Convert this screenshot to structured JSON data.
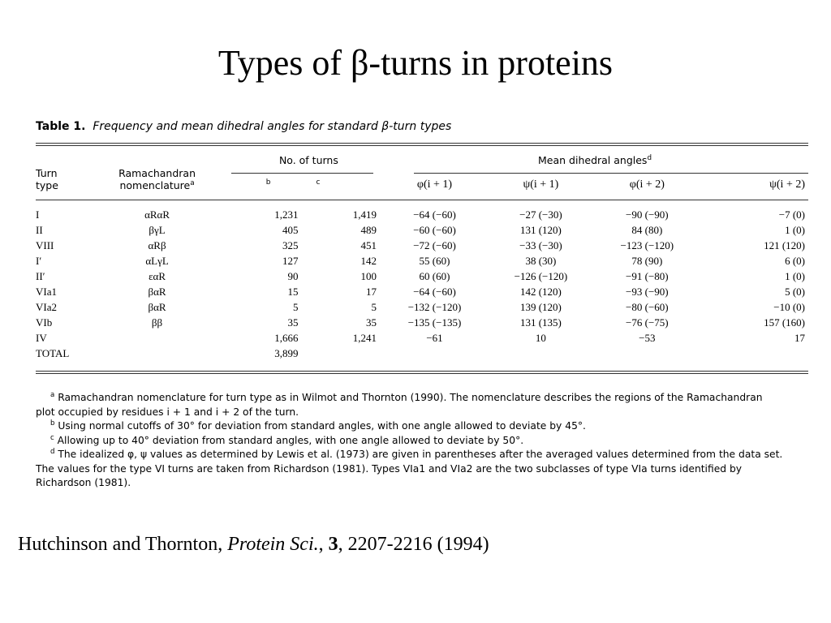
{
  "slide": {
    "title": "Types of β-turns in proteins",
    "citation": {
      "authors": "Hutchinson and Thornton, ",
      "journal": "Protein Sci.",
      "sep1": ", ",
      "volume": "3",
      "rest": ", 2207-2216 (1994)"
    }
  },
  "table": {
    "label": "Table 1.",
    "caption": "Frequency and mean dihedral angles for standard β-turn types",
    "headers": {
      "turn_type_1": "Turn",
      "turn_type_2": "type",
      "ramachandran_1": "Ramachandran",
      "ramachandran_2": "nomenclature",
      "ramachandran_sup": "a",
      "no_of_turns": "No. of turns",
      "sub_b": "b",
      "sub_c": "c",
      "mean_dihedral": "Mean dihedral angles",
      "mean_dihedral_sup": "d",
      "phi1": "φ(i + 1)",
      "psi1": "ψ(i + 1)",
      "phi2": "φ(i + 2)",
      "psi2": "ψ(i + 2)"
    },
    "rows": [
      {
        "type": "I",
        "nom": "αRαR",
        "b": "1,231",
        "c": "1,419",
        "phi1": "−64 (−60)",
        "psi1": "−27 (−30)",
        "phi2": "−90 (−90)",
        "psi2": "−7 (0)"
      },
      {
        "type": "II",
        "nom": "βγL",
        "b": "405",
        "c": "489",
        "phi1": "−60 (−60)",
        "psi1": "131 (120)",
        "phi2": "84 (80)",
        "psi2": "1 (0)"
      },
      {
        "type": "VIII",
        "nom": "αRβ",
        "b": "325",
        "c": "451",
        "phi1": "−72 (−60)",
        "psi1": "−33 (−30)",
        "phi2": "−123 (−120)",
        "psi2": "121 (120)"
      },
      {
        "type": "I′",
        "nom": "αLγL",
        "b": "127",
        "c": "142",
        "phi1": "55 (60)",
        "psi1": "38 (30)",
        "phi2": "78 (90)",
        "psi2": "6 (0)"
      },
      {
        "type": "II′",
        "nom": "εαR",
        "b": "90",
        "c": "100",
        "phi1": "60 (60)",
        "psi1": "−126 (−120)",
        "phi2": "−91 (−80)",
        "psi2": "1 (0)"
      },
      {
        "type": "VIa1",
        "nom": "βαR",
        "b": "15",
        "c": "17",
        "phi1": "−64 (−60)",
        "psi1": "142 (120)",
        "phi2": "−93 (−90)",
        "psi2": "5 (0)"
      },
      {
        "type": "VIa2",
        "nom": "βαR",
        "b": "5",
        "c": "5",
        "phi1": "−132 (−120)",
        "psi1": "139 (120)",
        "phi2": "−80 (−60)",
        "psi2": "−10 (0)"
      },
      {
        "type": "VIb",
        "nom": "ββ",
        "b": "35",
        "c": "35",
        "phi1": "−135 (−135)",
        "psi1": "131 (135)",
        "phi2": "−76 (−75)",
        "psi2": "157 (160)"
      },
      {
        "type": "IV",
        "nom": "",
        "b": "1,666",
        "c": "1,241",
        "phi1": "−61",
        "psi1": "10",
        "phi2": "−53",
        "psi2": "17"
      },
      {
        "type": "TOTAL",
        "nom": "",
        "b": "3,899",
        "c": "",
        "phi1": "",
        "psi1": "",
        "phi2": "",
        "psi2": ""
      }
    ],
    "footnotes": {
      "a_mark": "a",
      "a_text": " Ramachandran nomenclature for turn type as in Wilmot and Thornton (1990). The nomenclature describes the regions of the Ramachandran",
      "a_text2": "plot occupied by residues i + 1 and i + 2 of the turn.",
      "b_mark": "b",
      "b_text": " Using normal cutoffs of 30° for deviation from standard angles, with one angle allowed to deviate by 45°.",
      "c_mark": "c",
      "c_text": " Allowing up to 40° deviation from standard angles, with one angle allowed to deviate by 50°.",
      "d_mark": "d",
      "d_text": " The idealized φ, ψ values as determined by Lewis et al. (1973) are given in parentheses after the averaged values determined from the data set.",
      "d_text2": "The values for the type VI turns are taken from Richardson (1981). Types VIa1 and VIa2 are the two subclasses of type VIa turns identified by",
      "d_text3": "Richardson (1981)."
    }
  }
}
